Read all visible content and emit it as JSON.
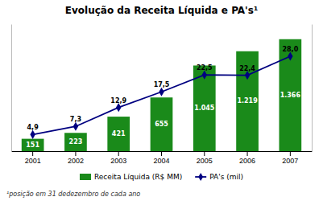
{
  "chart_data": {
    "type": "bar",
    "title": "Evolução da Receita Líquida e PA's¹",
    "categories": [
      "2001",
      "2002",
      "2003",
      "2004",
      "2005",
      "2006",
      "2007"
    ],
    "series": [
      {
        "name": "Receita Líquida (R$ MM)",
        "type": "bar",
        "color": "#1a8a1a",
        "values": [
          151,
          223,
          421,
          655,
          1045,
          1219,
          1366
        ],
        "value_labels": [
          "151",
          "223",
          "421",
          "655",
          "1.045",
          "1.219",
          "1.366"
        ]
      },
      {
        "name": "PA's (mil)",
        "type": "line",
        "axis": "y2",
        "color": "#000080",
        "marker": "diamond",
        "values": [
          4.9,
          7.3,
          12.9,
          17.5,
          22.5,
          22.4,
          28.0
        ],
        "value_labels": [
          "4,9",
          "7,3",
          "12,9",
          "17,5",
          "22,5",
          "22,4",
          "28,0"
        ]
      }
    ],
    "ylim": [
      0,
      1550
    ],
    "y2lim": [
      0,
      37.5
    ],
    "tick_labels": "x",
    "data_labels": true,
    "grid": false,
    "legend": "bottom",
    "annotations": [
      "¹posição em 31 dedezembro de cada ano"
    ]
  }
}
